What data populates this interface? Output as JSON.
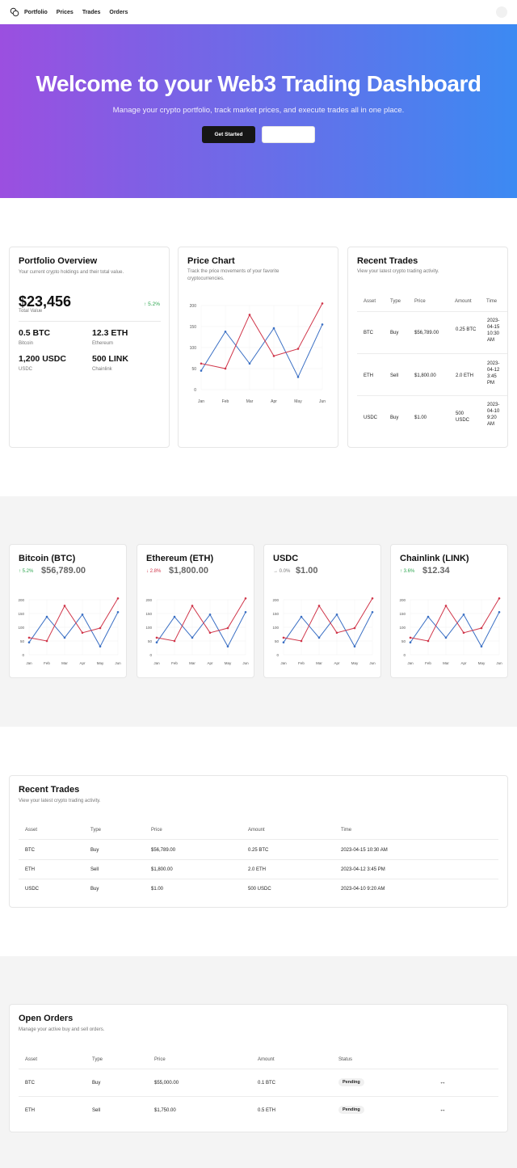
{
  "nav": {
    "links": [
      "Portfolio",
      "Prices",
      "Trades",
      "Orders"
    ]
  },
  "hero": {
    "title": "Welcome to your Web3 Trading Dashboard",
    "subtitle": "Manage your crypto portfolio, track market prices, and execute trades all in one place.",
    "primary_button": "Get Started",
    "secondary_button": ""
  },
  "portfolio": {
    "title": "Portfolio Overview",
    "subtitle": "Your current crypto holdings and their total value.",
    "total_value": "$23,456",
    "total_label": "Total Value",
    "change": "↑ 5.2%",
    "holdings": [
      {
        "amount": "0.5 BTC",
        "name": "Bitcoin"
      },
      {
        "amount": "12.3 ETH",
        "name": "Ethereum"
      },
      {
        "amount": "1,200 USDC",
        "name": "USDC"
      },
      {
        "amount": "500 LINK",
        "name": "Chainlink"
      }
    ]
  },
  "price_chart": {
    "title": "Price Chart",
    "subtitle": "Track the price movements of your favorite cryptocurrencies."
  },
  "chart_data": {
    "type": "line",
    "categories": [
      "Jan",
      "Feb",
      "Mar",
      "Apr",
      "May",
      "Jun"
    ],
    "ylim": [
      0,
      200
    ],
    "yticks": [
      0,
      50,
      100,
      150,
      200
    ],
    "series": [
      {
        "values": [
          45,
          138,
          62,
          146,
          30,
          155
        ],
        "color": "#3a6fc4"
      },
      {
        "values": [
          62,
          50,
          178,
          80,
          97,
          205
        ],
        "color": "#d0364a"
      }
    ]
  },
  "recent_trades_small": {
    "title": "Recent Trades",
    "subtitle": "View your latest crypto trading activity.",
    "headers": [
      "Asset",
      "Type",
      "Price",
      "Amount",
      "Time"
    ],
    "rows": [
      {
        "asset": "BTC",
        "type": "Buy",
        "price": "$56,789.00",
        "amount": "0.25 BTC",
        "time": "2023-04-15 10:30 AM"
      },
      {
        "asset": "ETH",
        "type": "Sell",
        "price": "$1,800.00",
        "amount": "2.0 ETH",
        "time": "2023-04-12 3:45 PM"
      },
      {
        "asset": "USDC",
        "type": "Buy",
        "price": "$1.00",
        "amount": "500 USDC",
        "time": "2023-04-10 9:20 AM"
      }
    ]
  },
  "coins": [
    {
      "name": "Bitcoin (BTC)",
      "change": "↑ 5.2%",
      "change_color": "#2ea650",
      "price": "$56,789.00"
    },
    {
      "name": "Ethereum (ETH)",
      "change": "↓ 2.8%",
      "change_color": "#d0364a",
      "price": "$1,800.00"
    },
    {
      "name": "USDC",
      "change": "→ 0.0%",
      "change_color": "#777777",
      "price": "$1.00"
    },
    {
      "name": "Chainlink (LINK)",
      "change": "↑ 3.6%",
      "change_color": "#2ea650",
      "price": "$12.34"
    }
  ],
  "recent_trades": {
    "title": "Recent Trades",
    "subtitle": "View your latest crypto trading activity.",
    "headers": [
      "Asset",
      "Type",
      "Price",
      "Amount",
      "Time"
    ],
    "rows": [
      {
        "asset": "BTC",
        "type": "Buy",
        "price": "$56,789.00",
        "amount": "0.25 BTC",
        "time": "2023-04-15 10:30 AM"
      },
      {
        "asset": "ETH",
        "type": "Sell",
        "price": "$1,800.00",
        "amount": "2.0 ETH",
        "time": "2023-04-12 3:45 PM"
      },
      {
        "asset": "USDC",
        "type": "Buy",
        "price": "$1.00",
        "amount": "500 USDC",
        "time": "2023-04-10 9:20 AM"
      }
    ]
  },
  "open_orders": {
    "title": "Open Orders",
    "subtitle": "Manage your active buy and sell orders.",
    "headers": [
      "Asset",
      "Type",
      "Price",
      "Amount",
      "Status"
    ],
    "rows": [
      {
        "asset": "BTC",
        "type": "Buy",
        "price": "$55,000.00",
        "amount": "0.1 BTC",
        "status": "Pending",
        "action_icon": "↔"
      },
      {
        "asset": "ETH",
        "type": "Sell",
        "price": "$1,750.00",
        "amount": "0.5 ETH",
        "status": "Pending",
        "action_icon": "↔"
      }
    ]
  }
}
